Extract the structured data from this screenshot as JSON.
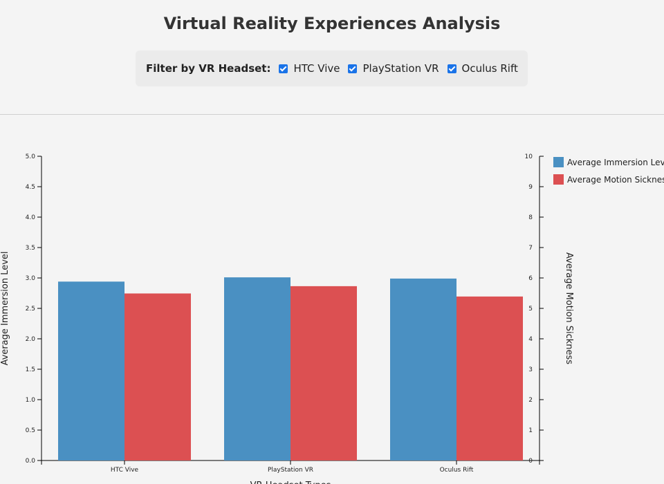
{
  "title": "Virtual Reality Experiences Analysis",
  "filter": {
    "label": "Filter by VR Headset:",
    "options": [
      {
        "label": "HTC Vive",
        "checked": true
      },
      {
        "label": "PlayStation VR",
        "checked": true
      },
      {
        "label": "Oculus Rift",
        "checked": true
      }
    ]
  },
  "chart_data": {
    "type": "bar",
    "categories": [
      "HTC Vive",
      "PlayStation VR",
      "Oculus Rift"
    ],
    "series": [
      {
        "name": "Average Immersion Level",
        "axis": "left",
        "color": "#4a90c2",
        "values": [
          2.94,
          3.01,
          2.99
        ]
      },
      {
        "name": "Average Motion Sickness",
        "axis": "right",
        "color": "#dc5052",
        "values": [
          5.49,
          5.73,
          5.39
        ]
      }
    ],
    "xlabel": "VR Headset Types",
    "ylabel_left": "Average Immersion Level",
    "ylabel_right": "Average Motion Sickness",
    "ylim_left": [
      0,
      5
    ],
    "ylim_right": [
      0,
      10
    ],
    "yticks_left": [
      "0.0",
      "0.5",
      "1.0",
      "1.5",
      "2.0",
      "2.5",
      "3.0",
      "3.5",
      "4.0",
      "4.5",
      "5.0"
    ],
    "yticks_right": [
      "0",
      "1",
      "2",
      "3",
      "4",
      "5",
      "6",
      "7",
      "8",
      "9",
      "10"
    ],
    "legend_position": "top-right"
  }
}
